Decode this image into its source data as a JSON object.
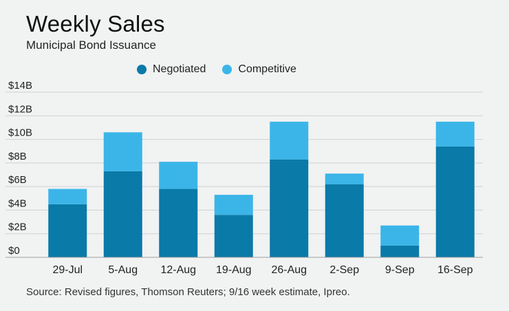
{
  "header": {
    "title": "Weekly Sales",
    "subtitle": "Municipal Bond Issuance"
  },
  "source": "Source: Revised figures, Thomson Reuters; 9/16 week estimate, Ipreo.",
  "colors": {
    "negotiated": "#0a7aa8",
    "competitive": "#3bb5e8",
    "grid": "#cfd3d3",
    "background": "#f1f2f2"
  },
  "chart_data": {
    "type": "bar",
    "stacked": true,
    "title": "Weekly Sales",
    "subtitle": "Municipal Bond Issuance",
    "xlabel": "",
    "ylabel": "",
    "categories": [
      "29-Jul",
      "5-Aug",
      "12-Aug",
      "19-Aug",
      "26-Aug",
      "2-Sep",
      "9-Sep",
      "16-Sep"
    ],
    "series": [
      {
        "name": "Negotiated",
        "values": [
          4.5,
          7.3,
          5.8,
          3.6,
          8.3,
          6.2,
          1.0,
          9.4
        ]
      },
      {
        "name": "Competitive",
        "values": [
          1.3,
          3.3,
          2.3,
          1.7,
          3.2,
          0.9,
          1.7,
          2.1
        ]
      }
    ],
    "ylim": [
      0,
      14
    ],
    "yticks": [
      0,
      2,
      4,
      6,
      8,
      10,
      12,
      14
    ],
    "ytick_labels": [
      "$0",
      "$2B",
      "$4B",
      "$6B",
      "$8B",
      "$10B",
      "$12B",
      "$14B"
    ],
    "grid": true,
    "legend": "top"
  }
}
